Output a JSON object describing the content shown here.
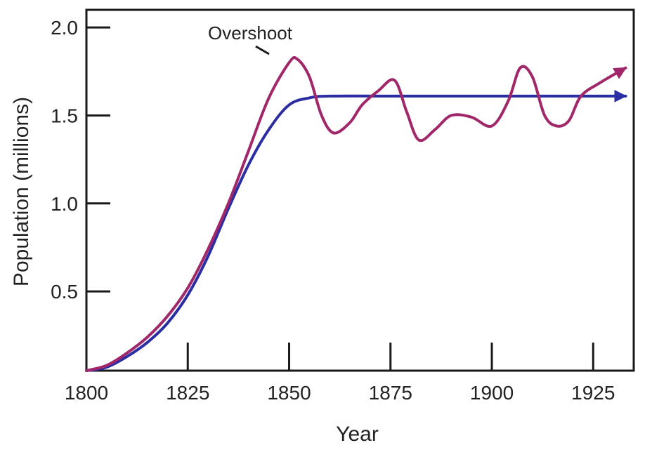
{
  "chart_data": {
    "type": "line",
    "title": "",
    "xlabel": "Year",
    "ylabel": "Population (millions)",
    "xlim": [
      1800,
      1935
    ],
    "ylim": [
      0.05,
      2.1
    ],
    "x_ticks": [
      1800,
      1825,
      1850,
      1875,
      1900,
      1925
    ],
    "x_tick_labels": [
      "1800",
      "1825",
      "1850",
      "1875",
      "1900",
      "1925"
    ],
    "y_ticks": [
      0.5,
      1.0,
      1.5,
      2.0
    ],
    "y_tick_labels": [
      "0.5",
      "1.0",
      "1.5",
      "2.0"
    ],
    "grid": false,
    "legend": "none",
    "series": [
      {
        "color": "#2b2ea3",
        "arrow": true,
        "x": [
          1800,
          1805,
          1810,
          1815,
          1820,
          1825,
          1830,
          1835,
          1840,
          1845,
          1850,
          1855,
          1860,
          1875,
          1900,
          1925,
          1933
        ],
        "y": [
          0.05,
          0.07,
          0.13,
          0.21,
          0.32,
          0.48,
          0.7,
          0.97,
          1.22,
          1.42,
          1.56,
          1.6,
          1.61,
          1.61,
          1.61,
          1.61,
          1.61
        ]
      },
      {
        "color": "#a0286a",
        "arrow": true,
        "x": [
          1800,
          1805,
          1810,
          1815,
          1820,
          1825,
          1830,
          1835,
          1840,
          1845,
          1850,
          1852,
          1855,
          1858,
          1861,
          1865,
          1868,
          1872,
          1876,
          1879,
          1882,
          1886,
          1890,
          1895,
          1900,
          1904,
          1907,
          1910,
          1913,
          1916,
          1919,
          1922,
          1927,
          1933
        ],
        "y": [
          0.05,
          0.08,
          0.15,
          0.24,
          0.36,
          0.52,
          0.74,
          1.0,
          1.3,
          1.6,
          1.8,
          1.82,
          1.72,
          1.5,
          1.4,
          1.46,
          1.56,
          1.64,
          1.7,
          1.52,
          1.36,
          1.42,
          1.5,
          1.49,
          1.44,
          1.58,
          1.77,
          1.72,
          1.5,
          1.44,
          1.47,
          1.61,
          1.69,
          1.77
        ]
      }
    ],
    "annotations": [
      {
        "text": "Overshoot",
        "x": 1851,
        "y": 1.82
      }
    ]
  },
  "colors": {
    "axis": "#1a1a1a",
    "stable_line": "#2b2ea3",
    "overshoot_line": "#a0286a"
  }
}
